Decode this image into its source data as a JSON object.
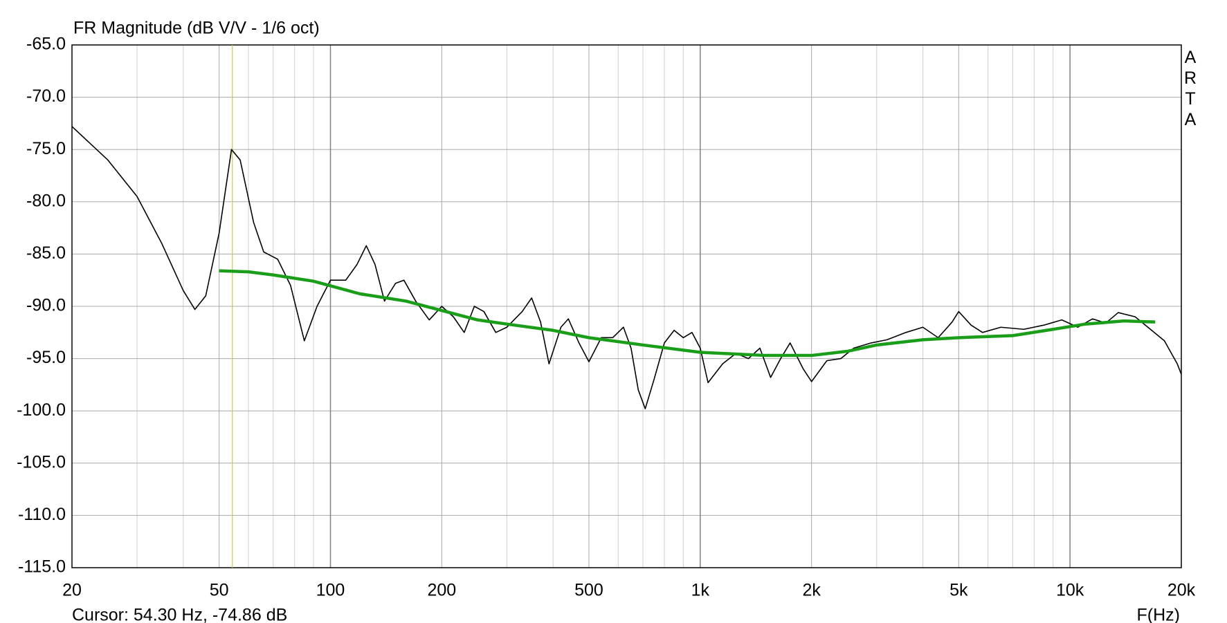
{
  "chart_data": {
    "type": "line",
    "title": "FR Magnitude (dB V/V - 1/6 oct)",
    "x_label": "F(Hz)",
    "annotation": "Cursor: 54.30 Hz, -74.86 dB",
    "brand": "ARTA",
    "cursor": {
      "x": 54.3,
      "color": "#c8c84a"
    },
    "x_scale": "log",
    "xlim": [
      20,
      20000
    ],
    "ylim": [
      -115,
      -65
    ],
    "xticks": [
      20,
      50,
      100,
      200,
      500,
      {
        "value": 1000,
        "label": "1k"
      },
      {
        "value": 2000,
        "label": "2k"
      },
      {
        "value": 5000,
        "label": "5k"
      },
      {
        "value": 10000,
        "label": "10k"
      },
      {
        "value": 20000,
        "label": "20k"
      }
    ],
    "x_minor_grid": [
      30,
      40,
      60,
      70,
      80,
      90,
      300,
      400,
      600,
      700,
      800,
      900,
      3000,
      4000,
      6000,
      7000,
      8000,
      9000
    ],
    "yticks": [
      {
        "value": -65,
        "label": "-65.0"
      },
      {
        "value": -70,
        "label": "-70.0"
      },
      {
        "value": -75,
        "label": "-75.0"
      },
      {
        "value": -80,
        "label": "-80.0"
      },
      {
        "value": -85,
        "label": "-85.0"
      },
      {
        "value": -90,
        "label": "-90.0"
      },
      {
        "value": -95,
        "label": "-95.0"
      },
      {
        "value": -100,
        "label": "-100.0"
      },
      {
        "value": -105,
        "label": "-105.0"
      },
      {
        "value": -110,
        "label": "-110.0"
      },
      {
        "value": -115,
        "label": "-115.0"
      }
    ],
    "grid": true,
    "series": [
      {
        "color": "#000000",
        "width": 1.6,
        "x": [
          20,
          25,
          30,
          35,
          40,
          43,
          46,
          50,
          54,
          57,
          62,
          66,
          72,
          78,
          85,
          92,
          100,
          110,
          118,
          125,
          132,
          140,
          150,
          158,
          170,
          185,
          200,
          215,
          230,
          245,
          260,
          280,
          300,
          330,
          350,
          370,
          390,
          420,
          440,
          470,
          500,
          540,
          580,
          620,
          650,
          680,
          710,
          750,
          800,
          850,
          900,
          950,
          1000,
          1050,
          1150,
          1250,
          1350,
          1450,
          1550,
          1650,
          1750,
          1900,
          2000,
          2200,
          2400,
          2600,
          2900,
          3200,
          3600,
          4000,
          4400,
          4800,
          5000,
          5400,
          5800,
          6500,
          7500,
          8500,
          9500,
          10500,
          11500,
          12500,
          13500,
          15000,
          16500,
          18000,
          19500,
          20000
        ],
        "values": [
          -72.8,
          -76,
          -79.5,
          -84,
          -88.5,
          -90.3,
          -89,
          -83,
          -75,
          -76,
          -82,
          -84.8,
          -85.5,
          -88,
          -93.3,
          -90,
          -87.5,
          -87.5,
          -86,
          -84.2,
          -86,
          -89.5,
          -87.8,
          -87.5,
          -89.5,
          -91.3,
          -90,
          -91,
          -92.5,
          -90,
          -90.5,
          -92.5,
          -92,
          -90.5,
          -89.2,
          -91.5,
          -95.5,
          -92,
          -91.2,
          -93.5,
          -95.3,
          -93,
          -93,
          -92,
          -94,
          -98,
          -99.8,
          -97,
          -93.5,
          -92.3,
          -93,
          -92.5,
          -94,
          -97.3,
          -95.5,
          -94.5,
          -95,
          -94,
          -96.8,
          -95,
          -93.5,
          -96,
          -97.2,
          -95.2,
          -95,
          -94,
          -93.5,
          -93.2,
          -92.5,
          -92,
          -93,
          -91.5,
          -90.5,
          -91.8,
          -92.5,
          -92,
          -92.2,
          -91.8,
          -91.3,
          -92,
          -91.2,
          -91.6,
          -90.6,
          -91,
          -92.2,
          -93.3,
          -95.5,
          -96.5
        ]
      },
      {
        "color": "#1a9e1a",
        "width": 4.5,
        "x": [
          50,
          60,
          70,
          90,
          120,
          160,
          200,
          250,
          300,
          400,
          500,
          700,
          1000,
          1500,
          2000,
          2500,
          3000,
          4000,
          5000,
          7000,
          9000,
          11000,
          14000,
          17000
        ],
        "values": [
          -86.6,
          -86.7,
          -87,
          -87.6,
          -88.8,
          -89.5,
          -90.4,
          -91.3,
          -91.7,
          -92.3,
          -93,
          -93.7,
          -94.4,
          -94.7,
          -94.7,
          -94.3,
          -93.7,
          -93.2,
          -93,
          -92.8,
          -92.2,
          -91.7,
          -91.4,
          -91.5
        ]
      }
    ]
  }
}
